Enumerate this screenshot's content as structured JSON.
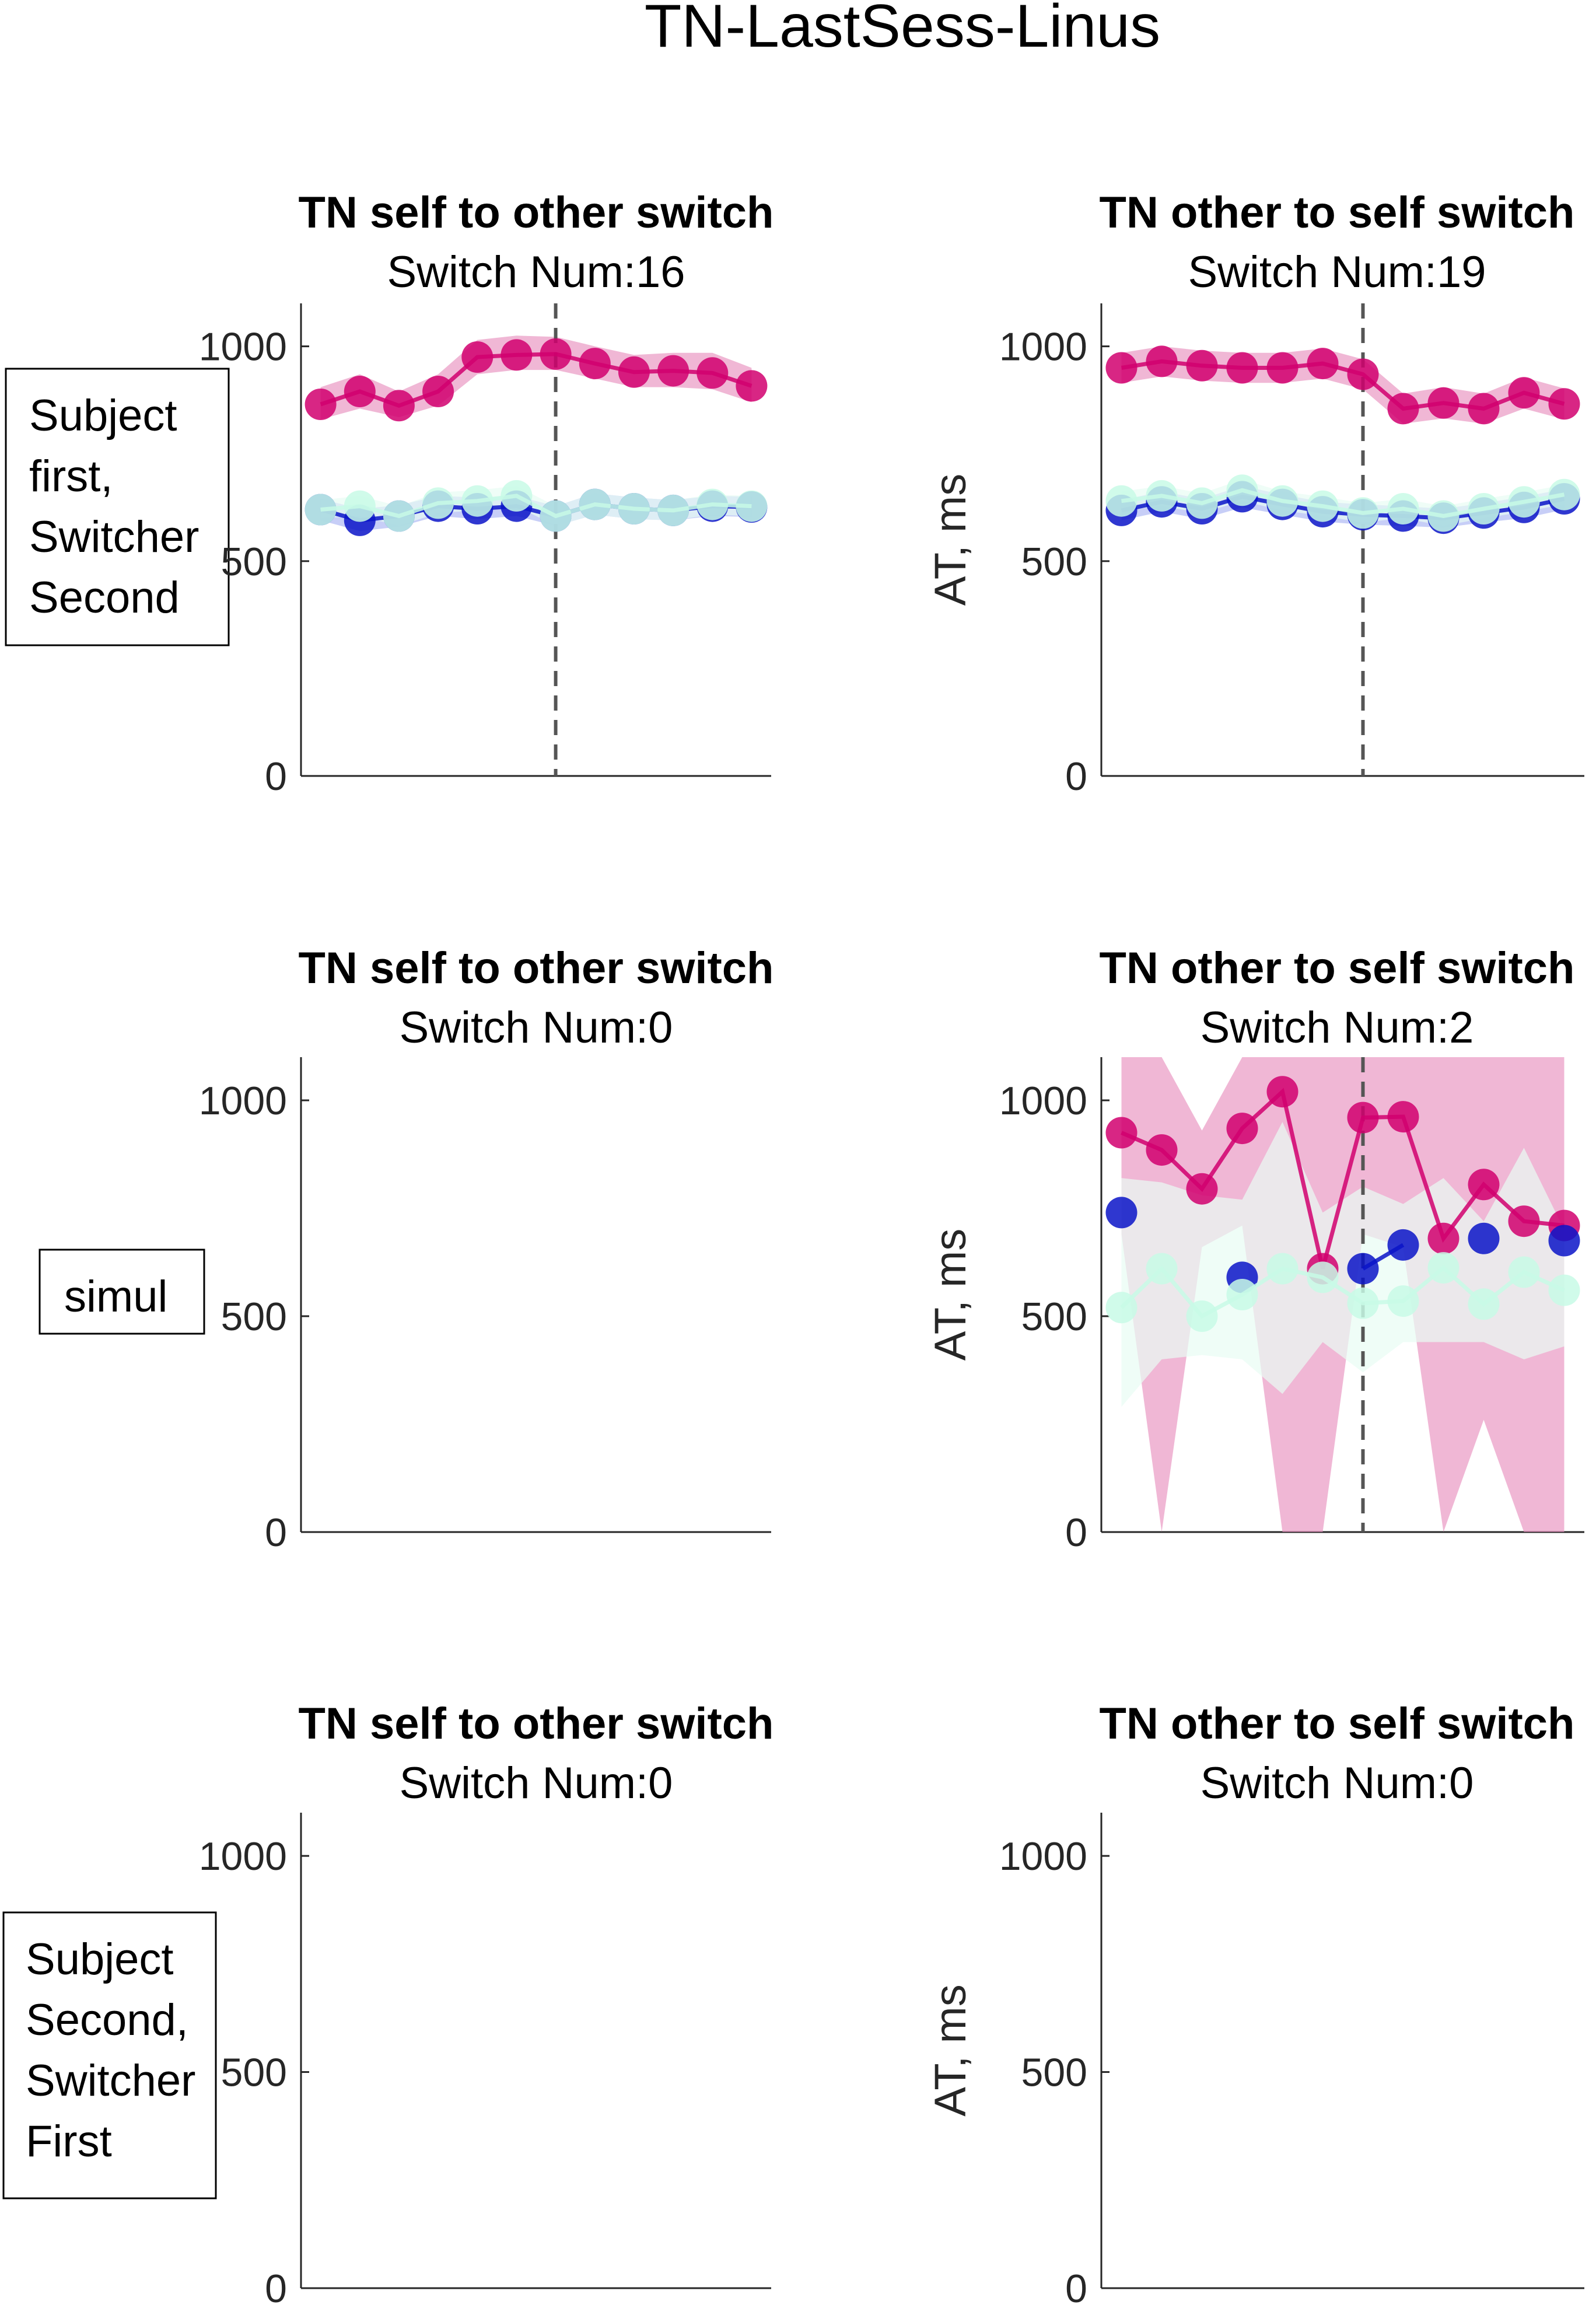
{
  "figure_title": "TN-LastSess-Linus",
  "row_labels": [
    [
      "Subject",
      "first,",
      "Switcher",
      "Second"
    ],
    [
      "simul"
    ],
    [
      "Subject",
      "Second,",
      "Switcher",
      "First"
    ]
  ],
  "colors": {
    "magenta": "#d1006f",
    "magenta_band": "#e890bf",
    "blue": "#0a14c8",
    "blue_band": "#a9b4f2",
    "mint": "#c8fae6",
    "mint_band": "#e8fcf3",
    "axis": "#262626",
    "dashed": "#555555"
  },
  "chart_data": [
    {
      "type": "line",
      "row": 0,
      "col": 0,
      "title": "TN self to other switch",
      "subtitle": "Switch Num:16",
      "ylabel": "",
      "ylim": [
        0,
        1100
      ],
      "yticks": [
        0,
        500,
        1000
      ],
      "xlim": [
        -6.5,
        5.5
      ],
      "switch_x": 0,
      "series": [
        {
          "color": "magenta",
          "x": [
            -6,
            -5,
            -4,
            -3,
            -2,
            -1,
            0,
            1,
            2,
            3,
            4,
            5
          ],
          "values": [
            865,
            895,
            862,
            895,
            975,
            980,
            982,
            960,
            940,
            943,
            938,
            908
          ],
          "lower": [
            830,
            855,
            835,
            862,
            935,
            945,
            945,
            925,
            905,
            905,
            900,
            870
          ],
          "upper": [
            905,
            935,
            895,
            935,
            1015,
            1025,
            1022,
            1000,
            980,
            985,
            985,
            950
          ]
        },
        {
          "color": "blue",
          "x": [
            -6,
            -5,
            -4,
            -3,
            -2,
            -1,
            0,
            1,
            2,
            3,
            4,
            5
          ],
          "values": [
            620,
            595,
            605,
            628,
            622,
            628,
            605,
            632,
            622,
            618,
            628,
            626
          ],
          "lower": [
            595,
            570,
            580,
            605,
            598,
            605,
            582,
            608,
            598,
            595,
            605,
            603
          ],
          "upper": [
            645,
            622,
            630,
            652,
            648,
            652,
            628,
            658,
            648,
            642,
            652,
            650
          ]
        },
        {
          "color": "mint",
          "x": [
            -6,
            -5,
            -4,
            -3,
            -2,
            -1,
            0,
            1,
            2,
            3,
            4,
            5
          ],
          "values": [
            620,
            628,
            605,
            635,
            640,
            652,
            605,
            632,
            622,
            618,
            632,
            628
          ],
          "lower": [
            600,
            605,
            582,
            612,
            618,
            628,
            582,
            608,
            598,
            595,
            608,
            605
          ],
          "upper": [
            642,
            652,
            628,
            660,
            665,
            675,
            628,
            658,
            648,
            642,
            655,
            652
          ]
        }
      ]
    },
    {
      "type": "line",
      "row": 0,
      "col": 1,
      "title": "TN other to self switch",
      "subtitle": "Switch Num:19",
      "ylabel": "AT, ms",
      "ylim": [
        0,
        1100
      ],
      "yticks": [
        0,
        500,
        1000
      ],
      "xlim": [
        -6.5,
        5.5
      ],
      "switch_x": 0,
      "series": [
        {
          "color": "magenta",
          "x": [
            -6,
            -5,
            -4,
            -3,
            -2,
            -1,
            0,
            1,
            2,
            3,
            4,
            5
          ],
          "values": [
            950,
            965,
            955,
            950,
            950,
            960,
            935,
            855,
            868,
            855,
            892,
            866
          ],
          "lower": [
            915,
            930,
            920,
            915,
            915,
            925,
            900,
            820,
            832,
            820,
            855,
            830
          ],
          "upper": [
            985,
            1000,
            990,
            985,
            985,
            995,
            970,
            890,
            905,
            890,
            928,
            902
          ]
        },
        {
          "color": "blue",
          "x": [
            -6,
            -5,
            -4,
            -3,
            -2,
            -1,
            0,
            1,
            2,
            3,
            4,
            5
          ],
          "values": [
            618,
            638,
            622,
            650,
            632,
            615,
            608,
            605,
            600,
            612,
            625,
            645
          ],
          "lower": [
            595,
            615,
            598,
            625,
            608,
            592,
            585,
            582,
            578,
            590,
            600,
            620
          ],
          "upper": [
            642,
            662,
            645,
            675,
            655,
            638,
            632,
            628,
            622,
            635,
            650,
            668
          ]
        },
        {
          "color": "mint",
          "x": [
            -6,
            -5,
            -4,
            -3,
            -2,
            -1,
            0,
            1,
            2,
            3,
            4,
            5
          ],
          "values": [
            640,
            652,
            635,
            665,
            640,
            628,
            612,
            622,
            605,
            622,
            638,
            655
          ],
          "lower": [
            618,
            628,
            612,
            640,
            618,
            605,
            590,
            600,
            582,
            600,
            615,
            632
          ],
          "upper": [
            662,
            675,
            658,
            690,
            662,
            650,
            635,
            645,
            628,
            645,
            660,
            678
          ]
        }
      ]
    },
    {
      "type": "line",
      "row": 1,
      "col": 0,
      "title": "TN self to other switch",
      "subtitle": "Switch Num:0",
      "ylabel": "",
      "ylim": [
        0,
        1100
      ],
      "yticks": [
        0,
        500,
        1000
      ],
      "xlim": [
        -6.5,
        5.5
      ],
      "series": []
    },
    {
      "type": "line",
      "row": 1,
      "col": 1,
      "title": "TN other to self switch",
      "subtitle": "Switch Num:2",
      "ylabel": "AT, ms",
      "ylim": [
        0,
        1100
      ],
      "yticks": [
        0,
        500,
        1000
      ],
      "xlim": [
        -6.5,
        5.5
      ],
      "switch_x": 0,
      "series": [
        {
          "color": "magenta",
          "x": [
            -6,
            -5,
            -4,
            -3,
            -2,
            -1,
            0,
            1,
            2,
            3,
            4,
            5
          ],
          "values": [
            925,
            885,
            795,
            935,
            1020,
            610,
            960,
            962,
            680,
            805,
            720,
            710
          ],
          "lower": [
            690,
            0,
            660,
            710,
            0,
            0,
            690,
            660,
            0,
            260,
            0,
            0
          ],
          "upper": [
            1100,
            1100,
            930,
            1100,
            1100,
            1100,
            1100,
            1100,
            1100,
            1100,
            1100,
            1100
          ]
        },
        {
          "color": "blue",
          "x": [
            -6,
            -5,
            -4,
            -3,
            -2,
            -1,
            0,
            1,
            2,
            3,
            4,
            5
          ],
          "values": [
            740,
            null,
            null,
            590,
            null,
            null,
            610,
            665,
            null,
            680,
            null,
            675
          ],
          "lower": [],
          "upper": []
        },
        {
          "color": "mint",
          "x": [
            -6,
            -5,
            -4,
            -3,
            -2,
            -1,
            0,
            1,
            2,
            3,
            4,
            5
          ],
          "values": [
            520,
            610,
            500,
            550,
            610,
            590,
            530,
            535,
            612,
            528,
            602,
            560
          ],
          "lower": [
            290,
            400,
            410,
            400,
            320,
            440,
            370,
            440,
            440,
            440,
            400,
            430
          ],
          "upper": [
            820,
            810,
            780,
            770,
            950,
            740,
            800,
            760,
            820,
            720,
            890,
            700
          ]
        }
      ]
    },
    {
      "type": "line",
      "row": 2,
      "col": 0,
      "title": "TN self to other switch",
      "subtitle": "Switch Num:0",
      "ylabel": "",
      "ylim": [
        0,
        1100
      ],
      "yticks": [
        0,
        500,
        1000
      ],
      "xlim": [
        -6.5,
        5.5
      ],
      "series": []
    },
    {
      "type": "line",
      "row": 2,
      "col": 1,
      "title": "TN other to self switch",
      "subtitle": "Switch Num:0",
      "ylabel": "AT, ms",
      "ylim": [
        0,
        1100
      ],
      "yticks": [
        0,
        500,
        1000
      ],
      "xlim": [
        -6.5,
        5.5
      ],
      "series": []
    }
  ]
}
